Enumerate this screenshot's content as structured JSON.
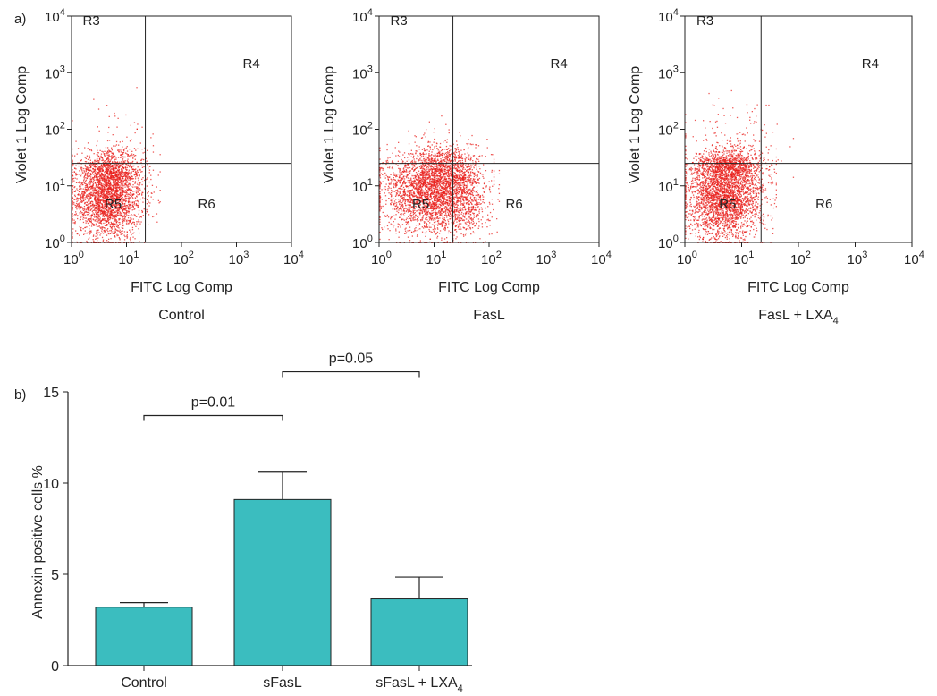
{
  "panels": {
    "a_label": "a)",
    "b_label": "b)"
  },
  "colors": {
    "dot": "#e8201c",
    "bar": "#3bbdbf",
    "axis": "#222222"
  },
  "chart_data": [
    {
      "type": "scatter",
      "panel": "a",
      "caption": "Control",
      "xlabel": "FITC Log Comp",
      "ylabel": "Violet 1 Log Comp",
      "xscale": "log",
      "yscale": "log",
      "xlim": [
        1,
        10000
      ],
      "ylim": [
        1,
        10000
      ],
      "xticks": [
        "10",
        "10",
        "10",
        "10",
        "10"
      ],
      "xtick_exponents": [
        "0",
        "1",
        "2",
        "3",
        "4"
      ],
      "yticks": [
        "10",
        "10",
        "10",
        "10",
        "10"
      ],
      "ytick_exponents": [
        "0",
        "1",
        "2",
        "3",
        "4"
      ],
      "gates": {
        "x": 22,
        "y": 25
      },
      "regions": [
        {
          "label": "R3",
          "x": 1.6,
          "y": 7000
        },
        {
          "label": "R4",
          "x": 1300,
          "y": 1200
        },
        {
          "label": "R5",
          "x": 4,
          "y": 4
        },
        {
          "label": "R6",
          "x": 200,
          "y": 4
        }
      ],
      "populations": [
        {
          "cx": 4.5,
          "cy": 6,
          "sx": 0.32,
          "sy": 0.36,
          "n": 2400,
          "xmax": 40
        },
        {
          "cx": 5,
          "cy": 18,
          "sx": 0.3,
          "sy": 0.18,
          "n": 700,
          "xmax": 30
        },
        {
          "cx": 6,
          "cy": 40,
          "sx": 0.45,
          "sy": 0.45,
          "n": 90,
          "xmax": 30
        }
      ]
    },
    {
      "type": "scatter",
      "panel": "a",
      "caption": "FasL",
      "xlabel": "FITC Log Comp",
      "ylabel": "Violet 1 Log Comp",
      "xscale": "log",
      "yscale": "log",
      "xlim": [
        1,
        10000
      ],
      "ylim": [
        1,
        10000
      ],
      "xticks": [
        "10",
        "10",
        "10",
        "10",
        "10"
      ],
      "xtick_exponents": [
        "0",
        "1",
        "2",
        "3",
        "4"
      ],
      "yticks": [
        "10",
        "10",
        "10",
        "10",
        "10"
      ],
      "ytick_exponents": [
        "0",
        "1",
        "2",
        "3",
        "4"
      ],
      "gates": {
        "x": 22,
        "y": 25
      },
      "regions": [
        {
          "label": "R3",
          "x": 1.6,
          "y": 7000
        },
        {
          "label": "R4",
          "x": 1300,
          "y": 1200
        },
        {
          "label": "R5",
          "x": 4,
          "y": 4
        },
        {
          "label": "R6",
          "x": 200,
          "y": 4
        }
      ],
      "populations": [
        {
          "cx": 8,
          "cy": 8,
          "sx": 0.42,
          "sy": 0.36,
          "n": 2600,
          "xmax": 120
        },
        {
          "cx": 18,
          "cy": 20,
          "sx": 0.3,
          "sy": 0.25,
          "n": 700,
          "xmax": 120
        },
        {
          "cx": 30,
          "cy": 5,
          "sx": 0.28,
          "sy": 0.3,
          "n": 500,
          "xmax": 150
        }
      ]
    },
    {
      "type": "scatter",
      "panel": "a",
      "caption": "FasL + LXA",
      "caption_subscript": "4",
      "xlabel": "FITC Log Comp",
      "ylabel": "Violet 1 Log Comp",
      "xscale": "log",
      "yscale": "log",
      "xlim": [
        1,
        10000
      ],
      "ylim": [
        1,
        10000
      ],
      "xticks": [
        "10",
        "10",
        "10",
        "10",
        "10"
      ],
      "xtick_exponents": [
        "0",
        "1",
        "2",
        "3",
        "4"
      ],
      "yticks": [
        "10",
        "10",
        "10",
        "10",
        "10"
      ],
      "ytick_exponents": [
        "0",
        "1",
        "2",
        "3",
        "4"
      ],
      "gates": {
        "x": 22,
        "y": 25
      },
      "regions": [
        {
          "label": "R3",
          "x": 1.6,
          "y": 7000
        },
        {
          "label": "R4",
          "x": 1300,
          "y": 1200
        },
        {
          "label": "R5",
          "x": 4,
          "y": 4
        },
        {
          "label": "R6",
          "x": 200,
          "y": 4
        }
      ],
      "populations": [
        {
          "cx": 5,
          "cy": 6,
          "sx": 0.33,
          "sy": 0.36,
          "n": 2600,
          "xmax": 40
        },
        {
          "cx": 6,
          "cy": 22,
          "sx": 0.3,
          "sy": 0.16,
          "n": 900,
          "xmax": 40
        },
        {
          "cx": 7,
          "cy": 60,
          "sx": 0.45,
          "sy": 0.45,
          "n": 140,
          "xmax": 80
        }
      ]
    },
    {
      "type": "bar",
      "panel": "b",
      "ylabel": "Annexin positive cells %",
      "ylim": [
        0,
        15
      ],
      "yticks": [
        0,
        5,
        10,
        15
      ],
      "categories": [
        {
          "label": "Control",
          "sub": ""
        },
        {
          "label": "sFasL",
          "sub": ""
        },
        {
          "label": "sFasL + LXA",
          "sub": "4"
        }
      ],
      "values": [
        3.2,
        9.1,
        3.65
      ],
      "errors": [
        0.25,
        1.5,
        1.2
      ],
      "comparisons": [
        {
          "from": 0,
          "to": 1,
          "label": "p=0.01",
          "y": 13.7
        },
        {
          "from": 1,
          "to": 2,
          "label": "p=0.05",
          "y": 16.1
        }
      ]
    }
  ]
}
